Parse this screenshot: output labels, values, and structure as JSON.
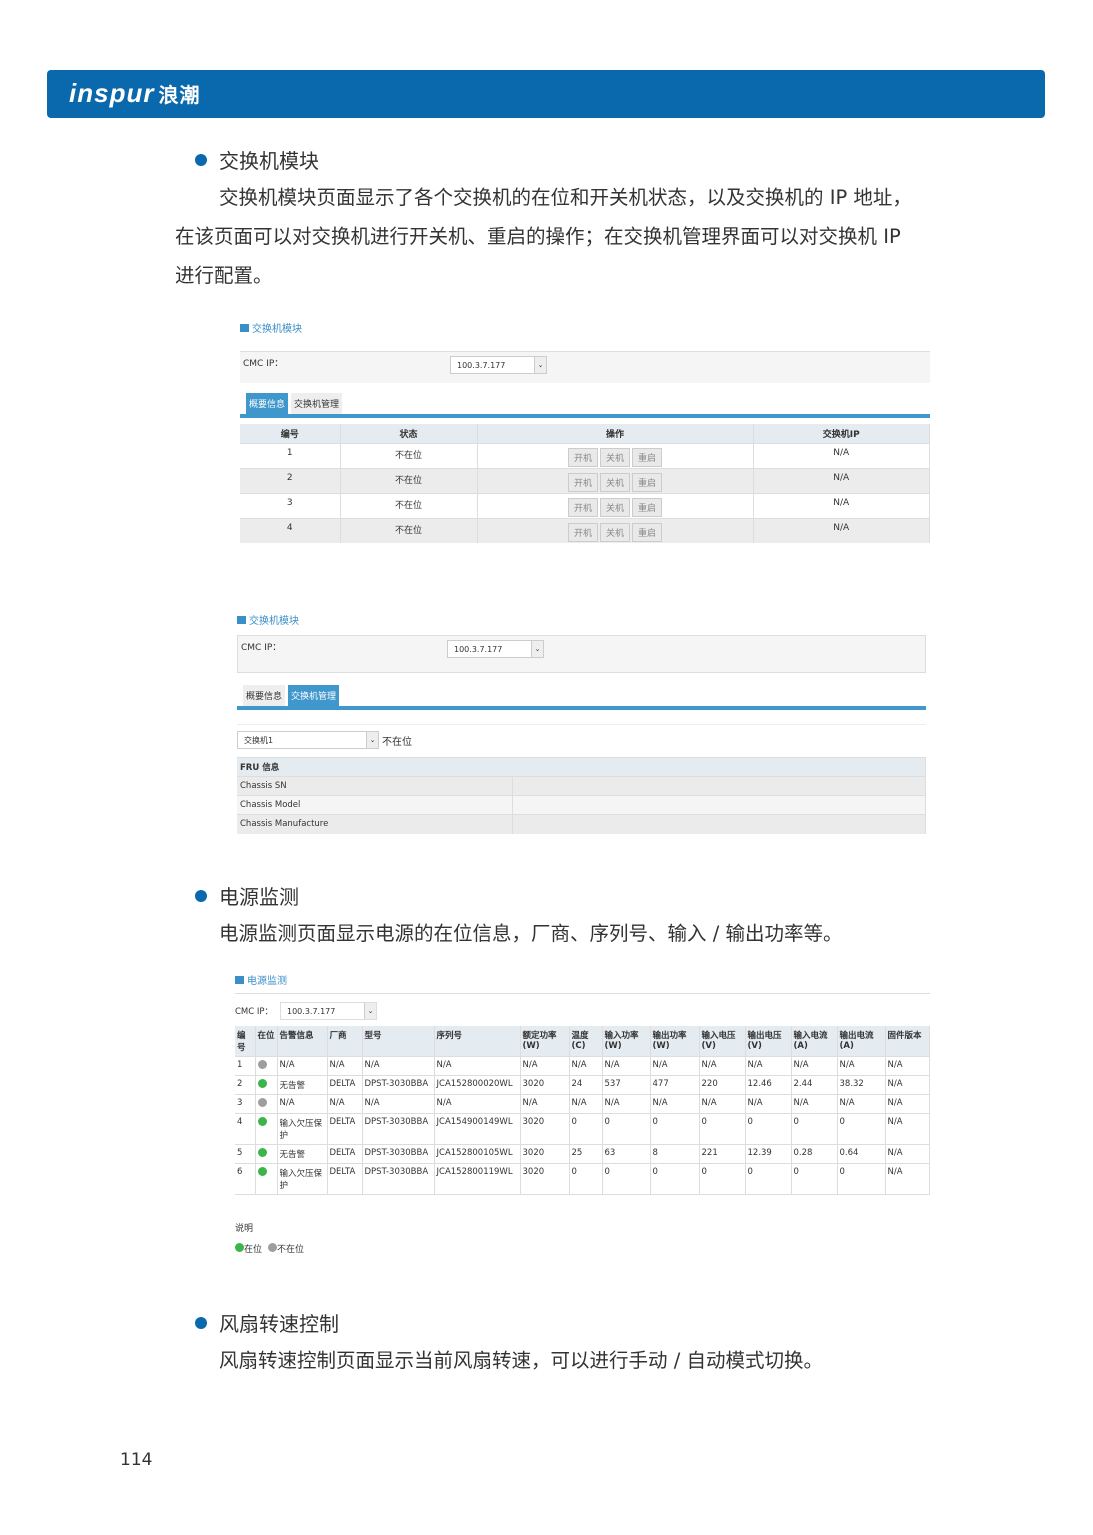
{
  "header": {
    "logo": "inspur",
    "logo_cn": "浪潮",
    "color": "#0a69ad"
  },
  "sections": [
    {
      "title": "交换机模块",
      "text": [
        "交换机模块页面显示了各个交换机的在位和开关机状态，以及交换机的 IP 地址，",
        "在该页面可以对交换机进行开关机、重启的操作；在交换机管理界面可以对交换机 IP",
        "进行配置。"
      ]
    },
    {
      "title": "电源监测",
      "text": [
        "电源监测页面显示电源的在位信息，厂商、序列号、输入 / 输出功率等。"
      ]
    },
    {
      "title": "风扇转速控制",
      "text": [
        "风扇转速控制页面显示当前风扇转速，可以进行手动 / 自动模式切换。"
      ]
    }
  ],
  "shot1": {
    "title": "交换机模块",
    "cmc_label": "CMC IP：",
    "cmc_value": "100.3.7.177",
    "tabs": [
      "概要信息",
      "交换机管理"
    ],
    "columns": [
      "编号",
      "状态",
      "操作",
      "交换机IP"
    ],
    "actions": [
      "开机",
      "关机",
      "重启"
    ],
    "rows": [
      {
        "id": "1",
        "status": "不在位",
        "ip": "N/A"
      },
      {
        "id": "2",
        "status": "不在位",
        "ip": "N/A"
      },
      {
        "id": "3",
        "status": "不在位",
        "ip": "N/A"
      },
      {
        "id": "4",
        "status": "不在位",
        "ip": "N/A"
      }
    ]
  },
  "shot2": {
    "title": "交换机模块",
    "cmc_label": "CMC IP：",
    "cmc_value": "100.3.7.177",
    "tabs": [
      "概要信息",
      "交换机管理"
    ],
    "switch_select": "交换机1",
    "switch_status": "不在位",
    "fru_title": "FRU 信息",
    "fru_rows": [
      "Chassis SN",
      "Chassis Model",
      "Chassis Manufacture"
    ]
  },
  "shot3": {
    "title": "电源监测",
    "cmc_label": "CMC IP：",
    "cmc_value": "100.3.7.177",
    "columns": [
      "编号",
      "在位",
      "告警信息",
      "厂商",
      "型号",
      "序列号",
      "额定功率(W)",
      "温度(C)",
      "输入功率(W)",
      "输出功率(W)",
      "输入电压(V)",
      "输出电压(V)",
      "输入电流(A)",
      "输出电流(A)",
      "固件版本"
    ],
    "rows": [
      [
        "1",
        "absent",
        "N/A",
        "N/A",
        "N/A",
        "N/A",
        "N/A",
        "N/A",
        "N/A",
        "N/A",
        "N/A",
        "N/A",
        "N/A",
        "N/A",
        "N/A"
      ],
      [
        "2",
        "present",
        "无告警",
        "DELTA",
        "DPST-3030BBA",
        "JCA152800020WL",
        "3020",
        "24",
        "537",
        "477",
        "220",
        "12.46",
        "2.44",
        "38.32",
        "N/A"
      ],
      [
        "3",
        "absent",
        "N/A",
        "N/A",
        "N/A",
        "N/A",
        "N/A",
        "N/A",
        "N/A",
        "N/A",
        "N/A",
        "N/A",
        "N/A",
        "N/A",
        "N/A"
      ],
      [
        "4",
        "present",
        "输入欠压保护",
        "DELTA",
        "DPST-3030BBA",
        "JCA154900149WL",
        "3020",
        "0",
        "0",
        "0",
        "0",
        "0",
        "0",
        "0",
        "N/A"
      ],
      [
        "5",
        "present",
        "无告警",
        "DELTA",
        "DPST-3030BBA",
        "JCA152800105WL",
        "3020",
        "25",
        "63",
        "8",
        "221",
        "12.39",
        "0.28",
        "0.64",
        "N/A"
      ],
      [
        "6",
        "present",
        "输入欠压保护",
        "DELTA",
        "DPST-3030BBA",
        "JCA152800119WL",
        "3020",
        "0",
        "0",
        "0",
        "0",
        "0",
        "0",
        "0",
        "N/A"
      ]
    ],
    "legend_title": "说明",
    "legend": [
      "在位",
      "不在位"
    ],
    "colors": {
      "present": "#3bb54a",
      "absent": "#9e9e9e"
    }
  },
  "page_number": "114"
}
